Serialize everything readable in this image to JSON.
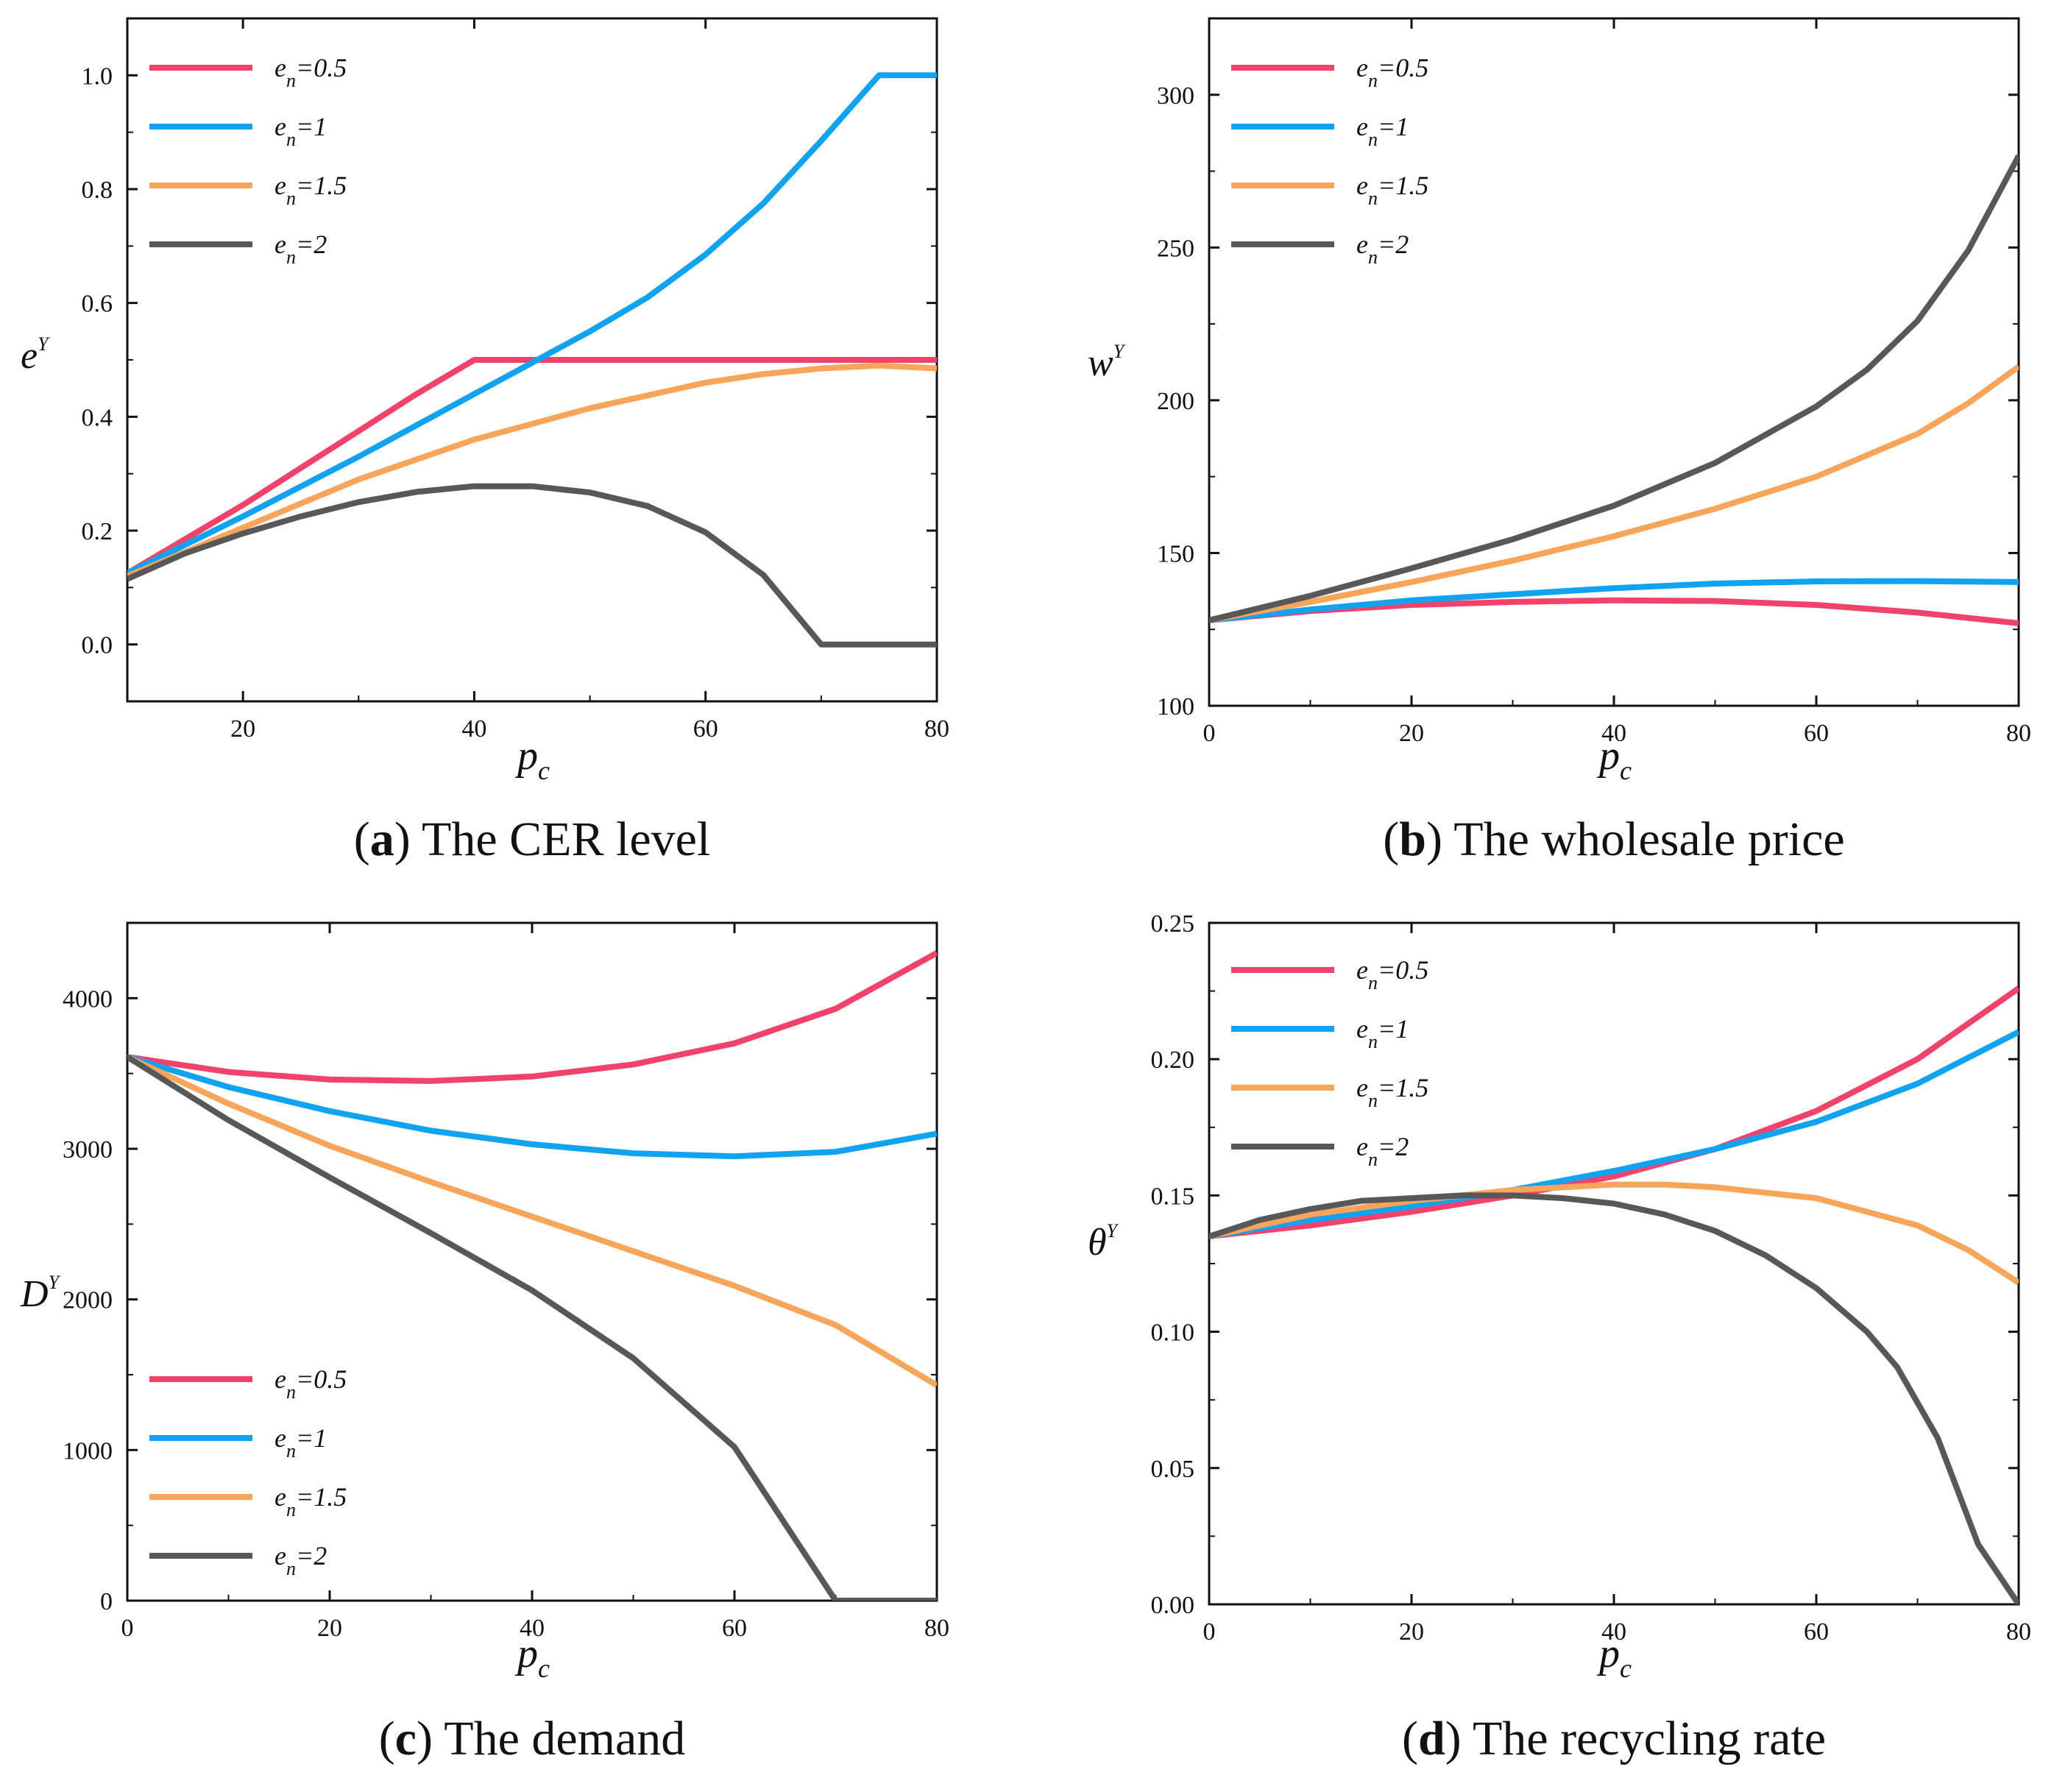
{
  "chart_data": [
    {
      "type": "line",
      "caption": {
        "letter": "a",
        "text": "The CER level"
      },
      "xlabel": "p",
      "xlabel_sub": "c",
      "ylabel": "e",
      "ylabel_sup": "Y",
      "xlim": [
        10,
        80
      ],
      "ylim": [
        -0.1,
        1.1
      ],
      "xticks": [
        20,
        40,
        60,
        80
      ],
      "xtick_labels": [
        "20",
        "40",
        "60",
        "80"
      ],
      "yticks": [
        0.0,
        0.2,
        0.4,
        0.6,
        0.8,
        1.0
      ],
      "ytick_labels": [
        "0.0",
        "0.2",
        "0.4",
        "0.6",
        "0.8",
        "1.0"
      ],
      "legend_position": "top-left",
      "series": [
        {
          "name": "e",
          "name_sub": "n",
          "name_suffix": "=0.5",
          "color": "#f0426b",
          "x": [
            10,
            15,
            20,
            25,
            30,
            35,
            40,
            45,
            50,
            55,
            60,
            65,
            70,
            75,
            80
          ],
          "y": [
            0.125,
            0.185,
            0.245,
            0.31,
            0.375,
            0.44,
            0.5,
            0.5,
            0.5,
            0.5,
            0.5,
            0.5,
            0.5,
            0.5,
            0.5
          ]
        },
        {
          "name": "e",
          "name_sub": "n",
          "name_suffix": "=1",
          "color": "#12a3f0",
          "x": [
            10,
            20,
            30,
            40,
            45,
            50,
            55,
            60,
            65,
            70,
            75,
            80
          ],
          "y": [
            0.125,
            0.225,
            0.33,
            0.44,
            0.495,
            0.55,
            0.61,
            0.685,
            0.775,
            0.885,
            1.0,
            1.0
          ]
        },
        {
          "name": "e",
          "name_sub": "n",
          "name_suffix": "=1.5",
          "color": "#f8a55c",
          "x": [
            10,
            20,
            30,
            40,
            50,
            60,
            65,
            70,
            75,
            80
          ],
          "y": [
            0.12,
            0.205,
            0.29,
            0.36,
            0.415,
            0.46,
            0.475,
            0.485,
            0.49,
            0.485
          ]
        },
        {
          "name": "e",
          "name_sub": "n",
          "name_suffix": "=2",
          "color": "#585858",
          "x": [
            10,
            15,
            20,
            25,
            30,
            35,
            40,
            45,
            50,
            55,
            60,
            65,
            70,
            75,
            80
          ],
          "y": [
            0.115,
            0.16,
            0.195,
            0.225,
            0.25,
            0.268,
            0.278,
            0.278,
            0.267,
            0.243,
            0.197,
            0.122,
            0.0,
            0.0,
            0.0
          ]
        }
      ]
    },
    {
      "type": "line",
      "caption": {
        "letter": "b",
        "text": "The wholesale price"
      },
      "xlabel": "p",
      "xlabel_sub": "c",
      "ylabel": "w",
      "ylabel_sup": "Y",
      "xlim": [
        0,
        80
      ],
      "ylim": [
        100,
        325
      ],
      "xticks": [
        0,
        20,
        40,
        60,
        80
      ],
      "xtick_labels": [
        "0",
        "20",
        "40",
        "60",
        "80"
      ],
      "yticks": [
        100,
        150,
        200,
        250,
        300
      ],
      "ytick_labels": [
        "100",
        "150",
        "200",
        "250",
        "300"
      ],
      "legend_position": "top-left",
      "series": [
        {
          "name": "e",
          "name_sub": "n",
          "name_suffix": "=0.5",
          "color": "#f0426b",
          "x": [
            0,
            10,
            20,
            30,
            40,
            50,
            60,
            70,
            80
          ],
          "y": [
            128,
            131,
            133,
            134,
            134.5,
            134.3,
            133,
            130.5,
            127
          ]
        },
        {
          "name": "e",
          "name_sub": "n",
          "name_suffix": "=1",
          "color": "#12a3f0",
          "x": [
            0,
            10,
            20,
            30,
            40,
            50,
            60,
            70,
            80
          ],
          "y": [
            128,
            131.5,
            134.5,
            136.5,
            138.5,
            140,
            140.7,
            140.8,
            140.5
          ]
        },
        {
          "name": "e",
          "name_sub": "n",
          "name_suffix": "=1.5",
          "color": "#f8a55c",
          "x": [
            0,
            10,
            20,
            30,
            40,
            50,
            60,
            70,
            75,
            80
          ],
          "y": [
            128,
            134,
            140.5,
            147.5,
            155.5,
            164.5,
            175,
            189,
            199,
            211
          ]
        },
        {
          "name": "e",
          "name_sub": "n",
          "name_suffix": "=2",
          "color": "#585858",
          "x": [
            0,
            10,
            20,
            30,
            40,
            50,
            60,
            65,
            70,
            75,
            80
          ],
          "y": [
            128,
            136,
            145,
            154.5,
            165.5,
            179.5,
            198,
            210,
            226,
            249,
            280
          ]
        }
      ]
    },
    {
      "type": "line",
      "caption": {
        "letter": "c",
        "text": "The demand"
      },
      "xlabel": "p",
      "xlabel_sub": "c",
      "ylabel": "D",
      "ylabel_sup": "Y",
      "xlim": [
        0,
        80
      ],
      "ylim": [
        0,
        4500
      ],
      "xticks": [
        0,
        20,
        40,
        60,
        80
      ],
      "xtick_labels": [
        "0",
        "20",
        "40",
        "60",
        "80"
      ],
      "yticks": [
        0,
        1000,
        2000,
        3000,
        4000
      ],
      "ytick_labels": [
        "0",
        "1000",
        "2000",
        "3000",
        "4000"
      ],
      "legend_position": "bottom-left",
      "series": [
        {
          "name": "e",
          "name_sub": "n",
          "name_suffix": "=0.5",
          "color": "#f0426b",
          "x": [
            0,
            10,
            20,
            30,
            40,
            50,
            60,
            70,
            80
          ],
          "y": [
            3610,
            3510,
            3460,
            3450,
            3480,
            3560,
            3700,
            3930,
            4300
          ]
        },
        {
          "name": "e",
          "name_sub": "n",
          "name_suffix": "=1",
          "color": "#12a3f0",
          "x": [
            0,
            10,
            20,
            30,
            40,
            50,
            60,
            70,
            80
          ],
          "y": [
            3610,
            3410,
            3250,
            3120,
            3030,
            2970,
            2950,
            2980,
            3100
          ]
        },
        {
          "name": "e",
          "name_sub": "n",
          "name_suffix": "=1.5",
          "color": "#f8a55c",
          "x": [
            0,
            10,
            20,
            30,
            40,
            50,
            60,
            70,
            80
          ],
          "y": [
            3610,
            3300,
            3020,
            2780,
            2550,
            2320,
            2090,
            1830,
            1430
          ]
        },
        {
          "name": "e",
          "name_sub": "n",
          "name_suffix": "=2",
          "color": "#585858",
          "x": [
            0,
            10,
            20,
            30,
            40,
            50,
            60,
            70,
            80
          ],
          "y": [
            3610,
            3190,
            2810,
            2440,
            2060,
            1610,
            1020,
            0,
            0
          ]
        }
      ]
    },
    {
      "type": "line",
      "caption": {
        "letter": "d",
        "text": "The recycling rate"
      },
      "xlabel": "p",
      "xlabel_sub": "c",
      "ylabel": "θ",
      "ylabel_sup": "Y",
      "xlim": [
        0,
        80
      ],
      "ylim": [
        0,
        0.25
      ],
      "xticks": [
        0,
        20,
        40,
        60,
        80
      ],
      "xtick_labels": [
        "0",
        "20",
        "40",
        "60",
        "80"
      ],
      "yticks": [
        0.0,
        0.05,
        0.1,
        0.15,
        0.2,
        0.25
      ],
      "ytick_labels": [
        "0.00",
        "0.05",
        "0.10",
        "0.15",
        "0.20",
        "0.25"
      ],
      "legend_position": "top-left",
      "series": [
        {
          "name": "e",
          "name_sub": "n",
          "name_suffix": "=0.5",
          "color": "#f0426b",
          "x": [
            0,
            10,
            20,
            30,
            40,
            50,
            60,
            70,
            80
          ],
          "y": [
            0.135,
            0.139,
            0.144,
            0.15,
            0.157,
            0.167,
            0.181,
            0.2,
            0.226
          ]
        },
        {
          "name": "e",
          "name_sub": "n",
          "name_suffix": "=1",
          "color": "#12a3f0",
          "x": [
            0,
            10,
            20,
            30,
            40,
            50,
            60,
            70,
            80
          ],
          "y": [
            0.135,
            0.141,
            0.146,
            0.152,
            0.159,
            0.167,
            0.177,
            0.191,
            0.21
          ]
        },
        {
          "name": "e",
          "name_sub": "n",
          "name_suffix": "=1.5",
          "color": "#f8a55c",
          "x": [
            0,
            10,
            20,
            30,
            40,
            45,
            50,
            60,
            70,
            75,
            80
          ],
          "y": [
            0.135,
            0.143,
            0.148,
            0.152,
            0.154,
            0.154,
            0.153,
            0.149,
            0.139,
            0.13,
            0.118
          ]
        },
        {
          "name": "e",
          "name_sub": "n",
          "name_suffix": "=2",
          "color": "#585858",
          "x": [
            0,
            5,
            10,
            15,
            20,
            25,
            30,
            35,
            40,
            45,
            50,
            55,
            60,
            65,
            68,
            72,
            76,
            80
          ],
          "y": [
            0.135,
            0.141,
            0.145,
            0.148,
            0.149,
            0.15,
            0.15,
            0.149,
            0.147,
            0.143,
            0.137,
            0.128,
            0.116,
            0.1,
            0.087,
            0.061,
            0.022,
            0.0
          ]
        }
      ]
    }
  ]
}
